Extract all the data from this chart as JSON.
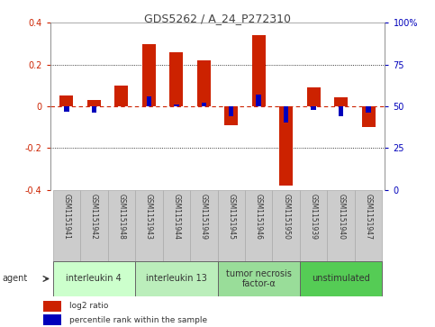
{
  "title": "GDS5262 / A_24_P272310",
  "samples": [
    "GSM1151941",
    "GSM1151942",
    "GSM1151948",
    "GSM1151943",
    "GSM1151944",
    "GSM1151949",
    "GSM1151945",
    "GSM1151946",
    "GSM1151950",
    "GSM1151939",
    "GSM1151940",
    "GSM1151947"
  ],
  "log2_ratio": [
    0.05,
    0.03,
    0.1,
    0.3,
    0.26,
    0.22,
    -0.09,
    0.34,
    -0.38,
    0.09,
    0.045,
    -0.1
  ],
  "percentile": [
    47,
    46,
    50,
    56,
    51,
    52,
    44,
    57,
    40,
    48,
    44,
    46
  ],
  "agents": [
    {
      "label": "interleukin 4",
      "start": 0,
      "end": 3
    },
    {
      "label": "interleukin 13",
      "start": 3,
      "end": 6
    },
    {
      "label": "tumor necrosis\nfactor-α",
      "start": 6,
      "end": 9
    },
    {
      "label": "unstimulated",
      "start": 9,
      "end": 12
    }
  ],
  "agent_colors": [
    "#ccffcc",
    "#bbeebb",
    "#99dd99",
    "#55cc55"
  ],
  "ylim": [
    -0.4,
    0.4
  ],
  "y2lim": [
    0,
    100
  ],
  "yticks": [
    -0.4,
    -0.2,
    0.0,
    0.2,
    0.4
  ],
  "y2ticks": [
    0,
    25,
    50,
    75,
    100
  ],
  "bar_color_red": "#cc2200",
  "bar_color_blue": "#0000bb",
  "ref_line_color": "#cc2200",
  "bg_color": "#ffffff",
  "sample_bg": "#cccccc",
  "title_fontsize": 9,
  "tick_fontsize": 7,
  "label_fontsize": 5.5,
  "agent_fontsize": 7
}
